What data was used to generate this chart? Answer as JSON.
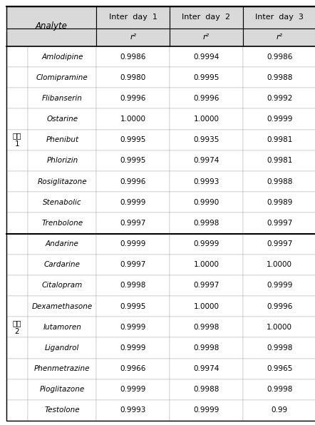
{
  "group1_label": "그룹\n1",
  "group2_label": "그룹\n2",
  "group1_analytes": [
    "Amlodipine",
    "Clomipramine",
    "Flibanserin",
    "Ostarine",
    "Phenibut",
    "Phlorizin",
    "Rosiglitazone",
    "Stenabolic",
    "Trenbolone"
  ],
  "group1_day1": [
    "0.9986",
    "0.9980",
    "0.9996",
    "1.0000",
    "0.9995",
    "0.9995",
    "0.9996",
    "0.9999",
    "0.9997"
  ],
  "group1_day2": [
    "0.9994",
    "0.9995",
    "0.9996",
    "1.0000",
    "0.9935",
    "0.9974",
    "0.9993",
    "0.9990",
    "0.9998"
  ],
  "group1_day3": [
    "0.9986",
    "0.9988",
    "0.9992",
    "0.9999",
    "0.9981",
    "0.9981",
    "0.9988",
    "0.9989",
    "0.9997"
  ],
  "group2_analytes": [
    "Andarine",
    "Cardarine",
    "Citalopram",
    "Dexamethasone",
    "Iutamoren",
    "Ligandrol",
    "Phenmetrazine",
    "Pioglitazone",
    "Testolone"
  ],
  "group2_day1": [
    "0.9999",
    "0.9997",
    "0.9998",
    "0.9995",
    "0.9999",
    "0.9999",
    "0.9966",
    "0.9999",
    "0.9993"
  ],
  "group2_day2": [
    "0.9999",
    "1.0000",
    "0.9997",
    "1.0000",
    "0.9998",
    "0.9998",
    "0.9974",
    "0.9988",
    "0.9999"
  ],
  "group2_day3": [
    "0.9997",
    "1.0000",
    "0.9999",
    "0.9996",
    "1.0000",
    "0.9998",
    "0.9965",
    "0.9998",
    "0.99"
  ],
  "header_bg": "#d9d9d9",
  "text_color": "#000000",
  "font_size": 7.5,
  "header_font_size": 8.5
}
